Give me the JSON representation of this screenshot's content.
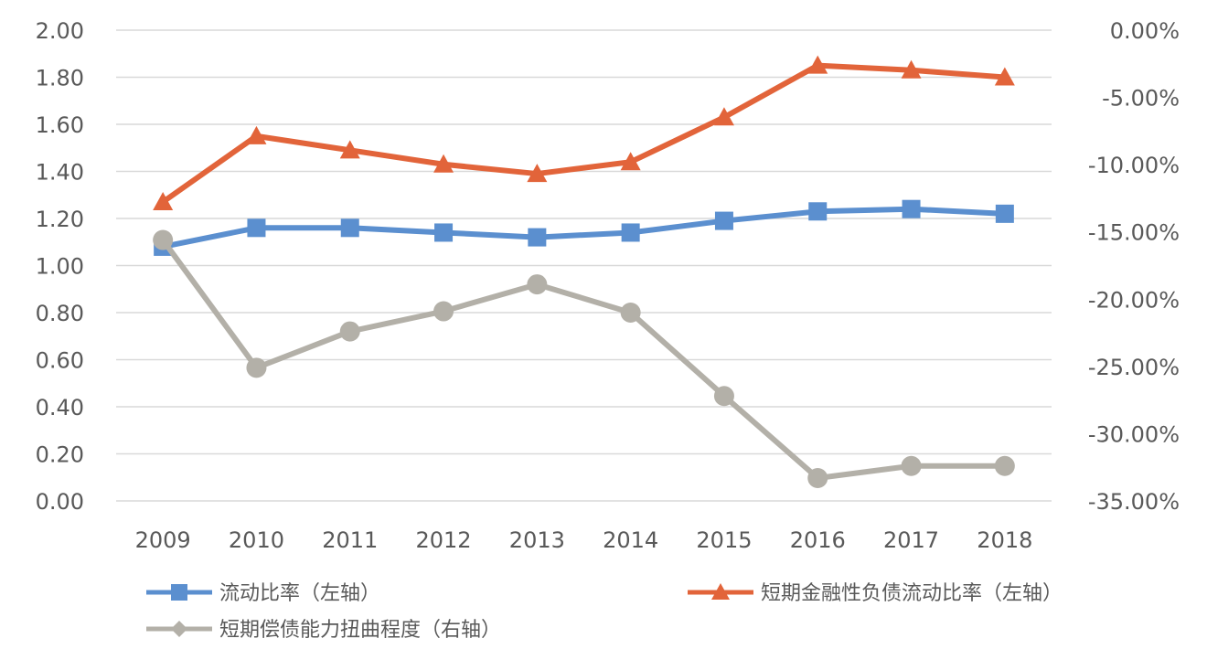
{
  "chart_data": {
    "type": "line",
    "title": "",
    "categories": [
      "2009",
      "2010",
      "2011",
      "2012",
      "2013",
      "2014",
      "2015",
      "2016",
      "2017",
      "2018"
    ],
    "y_left": {
      "min": 0,
      "max": 2,
      "ticks": [
        0,
        0.2,
        0.4,
        0.6,
        0.8,
        1.0,
        1.2,
        1.4,
        1.6,
        1.8,
        2.0
      ],
      "tick_labels": [
        "0.00",
        "0.20",
        "0.40",
        "0.60",
        "0.80",
        "1.00",
        "1.20",
        "1.40",
        "1.60",
        "1.80",
        "2.00"
      ]
    },
    "y_right": {
      "min": -35,
      "max": 0,
      "ticks": [
        -35,
        -30,
        -25,
        -20,
        -15,
        -10,
        -5,
        0
      ],
      "tick_labels": [
        "-35.00%",
        "-30.00%",
        "-25.00%",
        "-20.00%",
        "-15.00%",
        "-10.00%",
        "-5.00%",
        "0.00%"
      ]
    },
    "grid": true,
    "legend_position": "bottom",
    "series": [
      {
        "name": "流动比率（左轴）",
        "axis": "left",
        "color": "#5B8FCF",
        "marker": "square",
        "values": [
          1.08,
          1.16,
          1.16,
          1.14,
          1.12,
          1.14,
          1.19,
          1.23,
          1.24,
          1.22
        ]
      },
      {
        "name": "短期金融性负债流动比率（左轴）",
        "axis": "left",
        "color": "#E2643A",
        "marker": "triangle",
        "values": [
          1.27,
          1.55,
          1.49,
          1.43,
          1.39,
          1.44,
          1.63,
          1.85,
          1.83,
          1.8
        ]
      },
      {
        "name": "短期偿债能力扭曲程度（右轴）",
        "axis": "right",
        "color": "#B3B0A8",
        "marker": "diamond",
        "values": [
          -15.6,
          -25.1,
          -22.4,
          -20.9,
          -18.9,
          -21.0,
          -27.2,
          -33.3,
          -32.4,
          -32.4
        ]
      }
    ]
  }
}
